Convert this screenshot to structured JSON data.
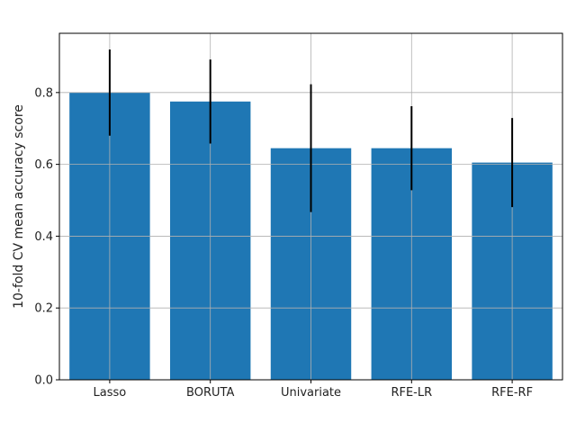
{
  "chart_data": {
    "type": "bar",
    "title": "",
    "xlabel": "",
    "ylabel": "10-fold CV mean accuracy score",
    "categories": [
      "Lasso",
      "BORUTA",
      "Univariate",
      "RFE-LR",
      "RFE-RF"
    ],
    "values": [
      0.8,
      0.775,
      0.645,
      0.645,
      0.605
    ],
    "error": [
      0.12,
      0.117,
      0.178,
      0.117,
      0.124
    ],
    "ylim": [
      0,
      0.965
    ],
    "yticks": [
      0.0,
      0.2,
      0.4,
      0.6,
      0.8
    ],
    "ytick_labels": [
      "0.0",
      "0.2",
      "0.4",
      "0.6",
      "0.8"
    ],
    "grid": true,
    "bar_color": "#1f77b4",
    "error_color": "#000000",
    "grid_color": "#b0b0b0"
  }
}
